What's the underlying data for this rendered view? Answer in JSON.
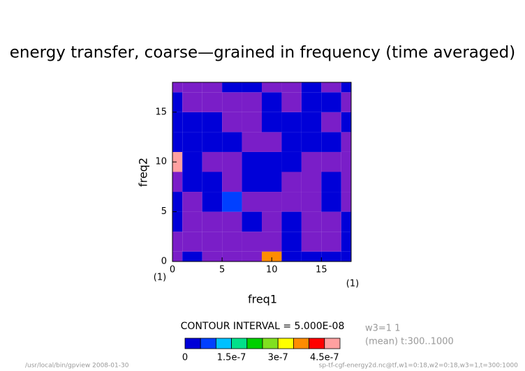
{
  "chart_data": {
    "type": "contour",
    "title": "energy transfer, coarse—grained in frequency (time averaged)",
    "xlabel": "freq1",
    "ylabel": "freq2",
    "x_unit_label": "(1)",
    "y_unit_label": "(1)",
    "x": [
      0,
      2,
      4,
      6,
      8,
      10,
      12,
      14,
      16,
      18
    ],
    "y": [
      0,
      2,
      4,
      6,
      8,
      10,
      12,
      14,
      16,
      18
    ],
    "z": [
      [
        -1e-08,
        2e-08,
        -1e-08,
        -1e-08,
        -1e-08,
        3.6e-07,
        2e-08,
        2e-08,
        2e-08,
        2e-08
      ],
      [
        -1e-08,
        -1e-08,
        -1e-08,
        -1e-08,
        -1e-08,
        -1e-08,
        2e-08,
        -1e-08,
        -1e-08,
        2e-08
      ],
      [
        2e-08,
        -1e-08,
        -1e-08,
        -1e-08,
        2e-08,
        -1e-08,
        2e-08,
        -1e-08,
        -1e-08,
        2e-08
      ],
      [
        2e-08,
        -1e-08,
        2e-08,
        7e-08,
        -1e-08,
        -1e-08,
        -1e-08,
        -1e-08,
        2e-08,
        -1e-08
      ],
      [
        -1e-08,
        2e-08,
        2e-08,
        -1e-08,
        2e-08,
        2e-08,
        -1e-08,
        -1e-08,
        2e-08,
        -1e-08
      ],
      [
        4.7e-07,
        2e-08,
        -1e-08,
        -1e-08,
        2e-08,
        2e-08,
        2e-08,
        -1e-08,
        -1e-08,
        -1e-08
      ],
      [
        2e-08,
        2e-08,
        2e-08,
        2e-08,
        -1e-08,
        -1e-08,
        2e-08,
        2e-08,
        2e-08,
        -1e-08
      ],
      [
        2e-08,
        2e-08,
        2e-08,
        -1e-08,
        -1e-08,
        2e-08,
        2e-08,
        2e-08,
        -1e-08,
        2e-08
      ],
      [
        2e-08,
        -1e-08,
        -1e-08,
        -1e-08,
        -1e-08,
        2e-08,
        -1e-08,
        2e-08,
        2e-08,
        -1e-08
      ],
      [
        -1e-08,
        -1e-08,
        -1e-08,
        2e-08,
        2e-08,
        -1e-08,
        -1e-08,
        2e-08,
        -1e-08,
        2e-08
      ]
    ],
    "xlim": [
      0,
      18
    ],
    "ylim": [
      0,
      18
    ],
    "xticks": [
      0,
      5,
      10,
      15
    ],
    "yticks": [
      0,
      5,
      10,
      15
    ],
    "levels": [
      0,
      5e-08,
      1e-07,
      1.5e-07,
      2e-07,
      2.5e-07,
      3e-07,
      3.5e-07,
      4e-07,
      4.5e-07,
      5e-07
    ],
    "level_colors": [
      "#0000d8",
      "#0040ff",
      "#00c0ff",
      "#00e08a",
      "#00d000",
      "#80e020",
      "#ffff00",
      "#ff8c00",
      "#ff0000",
      "#ffa0a0"
    ],
    "below_color": "#7a1ec8",
    "colorbar_ticks": [
      0,
      1.5e-07,
      3e-07,
      4.5e-07
    ],
    "contour_interval_text": "CONTOUR INTERVAL = 5.000E-08",
    "info_line1": "w3=1 1",
    "info_line2": "(mean) t:300..1000",
    "footer_left": "/usr/local/bin/gpview  2008-01-30",
    "footer_right": "sp-tf-cgf-energy2d.nc@tf,w1=0:18,w2=0:18,w3=1,t=300:1000"
  }
}
